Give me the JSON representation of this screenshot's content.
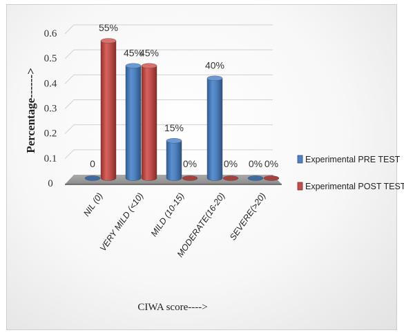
{
  "chart_data": {
    "type": "bar",
    "title": "",
    "xlabel": "CIWA score---->",
    "ylabel": "Percentage------>",
    "ylim": [
      0,
      0.6
    ],
    "yticks": [
      "0",
      "0.1",
      "0.2",
      "0.3",
      "0.4",
      "0.5",
      "0.6"
    ],
    "categories": [
      "NIL (0)",
      "VERY MILD (<10)",
      "MILD (10-15)",
      "MODERATE(16-20)",
      "SEVERE(>20)"
    ],
    "series": [
      {
        "name": "Experimental PRE TEST",
        "color": "#4f81bd",
        "values": [
          0,
          0.45,
          0.15,
          0.4,
          0
        ],
        "labels": [
          "0",
          "45%",
          "15%",
          "40%",
          "0%"
        ]
      },
      {
        "name": "Experimental POST TEST",
        "color": "#c0504d",
        "values": [
          0.55,
          0.45,
          0,
          0,
          0
        ],
        "labels": [
          "55%",
          "45%",
          "0%",
          "0%",
          "0%"
        ]
      }
    ],
    "grid": true,
    "legend": "right",
    "style": "3d-cylinder"
  }
}
